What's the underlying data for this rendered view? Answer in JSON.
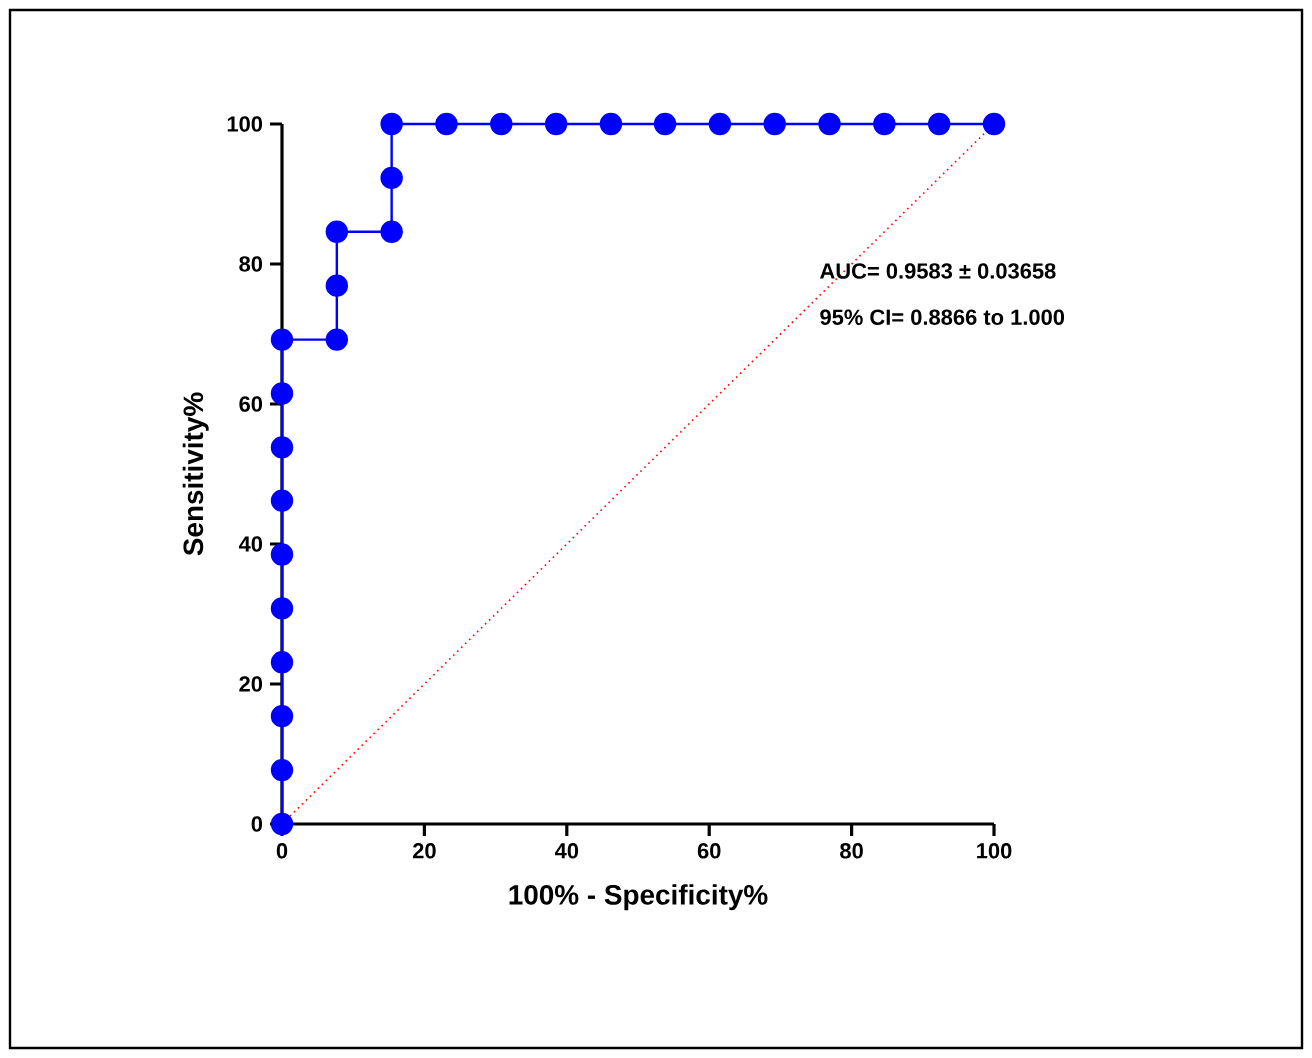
{
  "chart_data": {
    "type": "line",
    "xlabel": "100% - Specificity%",
    "ylabel": "Sensitivity%",
    "annotations": [
      "AUC= 0.9583 ± 0.03658",
      "95% CI= 0.8866 to 1.000"
    ],
    "xlim": [
      0,
      100
    ],
    "ylim": [
      0,
      100
    ],
    "xticks": [
      0,
      20,
      40,
      60,
      80,
      100
    ],
    "yticks": [
      0,
      20,
      40,
      60,
      80,
      100
    ],
    "grid": false,
    "series": [
      {
        "color": "#0000ff",
        "marker": "circle",
        "line_style": "solid",
        "x": [
          0,
          0,
          0,
          0,
          0,
          0,
          0,
          0,
          0,
          0,
          7.7,
          7.7,
          7.7,
          15.4,
          15.4,
          15.4,
          23.1,
          30.8,
          38.5,
          46.2,
          53.8,
          61.5,
          69.2,
          76.9,
          84.6,
          92.3,
          100
        ],
        "values": [
          0,
          7.7,
          15.4,
          23.1,
          30.8,
          38.5,
          46.2,
          53.8,
          61.5,
          69.2,
          69.2,
          76.9,
          84.6,
          84.6,
          92.3,
          100,
          100,
          100,
          100,
          100,
          100,
          100,
          100,
          100,
          100,
          100,
          100
        ]
      },
      {
        "color": "#ff0000",
        "marker": "none",
        "line_style": "dotted",
        "x": [
          0,
          100
        ],
        "values": [
          0,
          100
        ]
      }
    ]
  }
}
